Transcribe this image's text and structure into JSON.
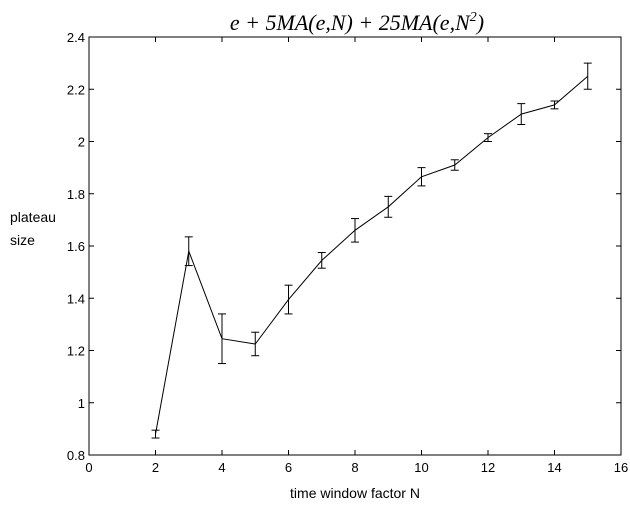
{
  "chart_data": {
    "type": "line",
    "title": {
      "part1": "e + 5MA(e,N) + 25MA(e,N",
      "sup": "2",
      "part2": ")"
    },
    "xlabel": "time window factor N",
    "ylabel": [
      "plateau",
      "size"
    ],
    "xlim": [
      0,
      16
    ],
    "ylim": [
      0.8,
      2.4
    ],
    "xticks": [
      "0",
      "2",
      "4",
      "6",
      "8",
      "10",
      "12",
      "14",
      "16"
    ],
    "yticks": [
      "0.8",
      "1",
      "1.2",
      "1.4",
      "1.6",
      "1.8",
      "2",
      "2.2",
      "2.4"
    ],
    "grid": false,
    "series": [
      {
        "x": [
          2,
          3,
          4,
          5,
          6,
          7,
          8,
          9,
          10,
          11,
          12,
          13,
          14,
          15
        ],
        "y": [
          0.88,
          1.58,
          1.245,
          1.225,
          1.395,
          1.545,
          1.66,
          1.75,
          1.865,
          1.91,
          2.015,
          2.105,
          2.14,
          2.25
        ],
        "err": [
          0.015,
          0.055,
          0.095,
          0.045,
          0.055,
          0.03,
          0.045,
          0.04,
          0.035,
          0.02,
          0.015,
          0.04,
          0.015,
          0.05
        ]
      }
    ],
    "color": "#000000"
  }
}
